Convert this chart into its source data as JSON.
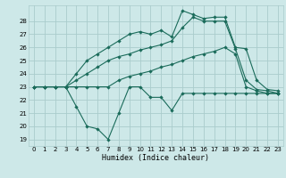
{
  "xlabel": "Humidex (Indice chaleur)",
  "background_color": "#cde8e8",
  "grid_color": "#aacccc",
  "line_color": "#1a6b5a",
  "xlim": [
    -0.5,
    23.5
  ],
  "ylim": [
    18.5,
    29.2
  ],
  "yticks": [
    19,
    20,
    21,
    22,
    23,
    24,
    25,
    26,
    27,
    28
  ],
  "xticks": [
    0,
    1,
    2,
    3,
    4,
    5,
    6,
    7,
    8,
    9,
    10,
    11,
    12,
    13,
    14,
    15,
    16,
    17,
    18,
    19,
    20,
    21,
    22,
    23
  ],
  "curve1_x": [
    0,
    1,
    2,
    3,
    4,
    5,
    6,
    7,
    8,
    9,
    10,
    11,
    12,
    13,
    14,
    15,
    16,
    17,
    18,
    19,
    20,
    21,
    22,
    23
  ],
  "curve1_y": [
    23,
    23,
    23,
    23,
    21.5,
    20,
    19.8,
    19,
    21,
    23,
    23,
    22.2,
    22.2,
    21.2,
    22.5,
    22.5,
    22.5,
    22.5,
    22.5,
    22.5,
    22.5,
    22.5,
    22.5,
    22.5
  ],
  "curve2_x": [
    0,
    1,
    2,
    3,
    4,
    5,
    6,
    7,
    8,
    9,
    10,
    11,
    12,
    13,
    14,
    15,
    16,
    17,
    18,
    19,
    20,
    21,
    22,
    23
  ],
  "curve2_y": [
    23,
    23,
    23,
    23,
    23,
    23,
    23,
    23,
    23.5,
    23.8,
    24.0,
    24.2,
    24.5,
    24.7,
    25.0,
    25.3,
    25.5,
    25.7,
    26.0,
    25.5,
    23.0,
    22.7,
    22.5,
    22.5
  ],
  "curve3_x": [
    0,
    1,
    2,
    3,
    4,
    5,
    6,
    7,
    8,
    9,
    10,
    11,
    12,
    13,
    14,
    15,
    16,
    17,
    18,
    19,
    20,
    21,
    22,
    23
  ],
  "curve3_y": [
    23,
    23,
    23,
    23,
    24,
    25,
    25.5,
    26.0,
    26.5,
    27.0,
    27.2,
    27.0,
    27.3,
    26.8,
    28.8,
    28.5,
    28.2,
    28.3,
    28.3,
    26.0,
    25.9,
    23.5,
    22.8,
    22.7
  ],
  "curve4_x": [
    0,
    1,
    2,
    3,
    4,
    5,
    6,
    7,
    8,
    9,
    10,
    11,
    12,
    13,
    14,
    15,
    16,
    17,
    18,
    19,
    20,
    21,
    22,
    23
  ],
  "curve4_y": [
    23,
    23,
    23,
    23,
    23.5,
    24,
    24.5,
    25,
    25.3,
    25.5,
    25.8,
    26.0,
    26.2,
    26.5,
    27.5,
    28.3,
    28.0,
    28.0,
    28.0,
    25.9,
    23.5,
    22.8,
    22.7,
    22.5
  ],
  "marker": "D",
  "markersize": 2.2,
  "linewidth": 0.8
}
